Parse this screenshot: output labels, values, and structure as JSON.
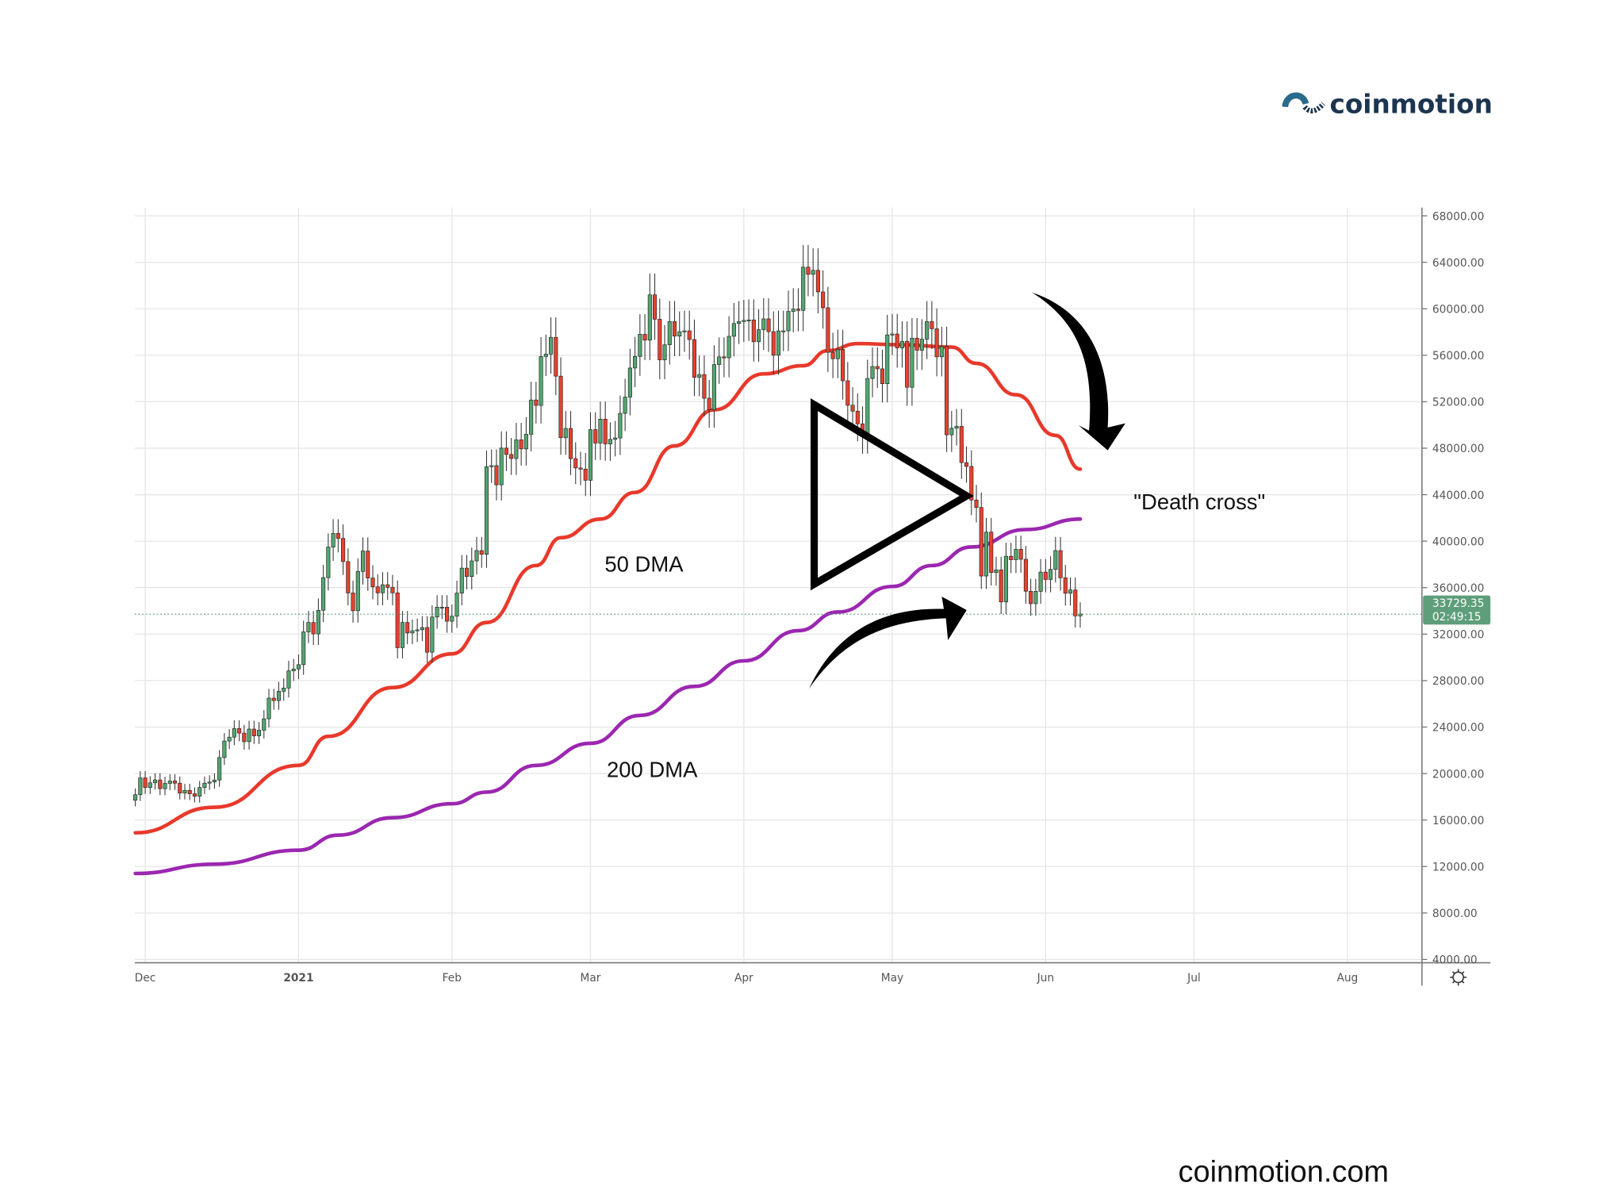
{
  "brand": {
    "logo_text": "coinmotion",
    "footer_url": "coinmotion.com",
    "logo_color": "#1c3550"
  },
  "chart_data": {
    "type": "candlestick",
    "title": "",
    "start_date": "2020-11-28",
    "closes": [
      17700,
      18180,
      19625,
      18800,
      19200,
      19450,
      18700,
      19150,
      19360,
      19170,
      18320,
      18550,
      18260,
      18050,
      18800,
      19170,
      19270,
      19440,
      21380,
      22800,
      23130,
      23870,
      23480,
      22740,
      23830,
      23240,
      23730,
      24710,
      26490,
      26280,
      27080,
      27360,
      28840,
      29000,
      29370,
      32190,
      33000,
      32020,
      34050,
      36860,
      39490,
      40670,
      40240,
      38240,
      35540,
      34010,
      37390,
      39150,
      36830,
      36070,
      35550,
      36250,
      36020,
      35550,
      30830,
      33000,
      32100,
      32290,
      32370,
      32570,
      30440,
      33470,
      34320,
      34320,
      33110,
      33540,
      35530,
      37680,
      36960,
      38300,
      39190,
      38870,
      46400,
      46500,
      44850,
      48010,
      47460,
      47110,
      48720,
      47940,
      49200,
      52150,
      51680,
      55890,
      56100,
      57540,
      54200,
      48900,
      49700,
      47100,
      46300,
      46200,
      45240,
      49600,
      48440,
      50500,
      48370,
      48760,
      48880,
      51000,
      52400,
      54900,
      55900,
      57800,
      57300,
      61200,
      59100,
      55600,
      56900,
      58900,
      57650,
      58030,
      58100,
      57350,
      54100,
      54340,
      52300,
      51300,
      55200,
      55860,
      55780,
      57630,
      58730,
      58900,
      59000,
      59040,
      57160,
      58200,
      59130,
      58030,
      56000,
      58100,
      58100,
      59770,
      59970,
      59860,
      63580,
      62960,
      63310,
      61450,
      60090,
      56250,
      55700,
      56500,
      53800,
      51700,
      51190,
      50100,
      49000,
      54000,
      55030,
      54830,
      53550,
      57750,
      57830,
      56630,
      57200,
      53240,
      57470,
      56430,
      57380,
      58900,
      58280,
      55860,
      56750,
      49150,
      49720,
      49880,
      46760,
      46430,
      43540,
      42900,
      37000,
      40780,
      37300,
      37530,
      34770,
      38700,
      38400,
      39300,
      38440,
      35690,
      34620,
      35680,
      37340,
      36700,
      37570,
      39190,
      36850,
      35520,
      35800,
      33570,
      33730
    ],
    "series": [
      {
        "name": "50 DMA",
        "color": "#e8392b",
        "points": [
          [
            "2020-11-29",
            14900
          ],
          [
            "2020-12-15",
            17100
          ],
          [
            "2021-01-01",
            20700
          ],
          [
            "2021-01-07",
            23200
          ],
          [
            "2021-01-20",
            27400
          ],
          [
            "2021-02-01",
            30300
          ],
          [
            "2021-02-08",
            33000
          ],
          [
            "2021-02-18",
            37900
          ],
          [
            "2021-02-23",
            40300
          ],
          [
            "2021-03-03",
            41900
          ],
          [
            "2021-03-10",
            44200
          ],
          [
            "2021-03-18",
            48200
          ],
          [
            "2021-03-26",
            51300
          ],
          [
            "2021-04-05",
            54400
          ],
          [
            "2021-04-13",
            55100
          ],
          [
            "2021-04-18",
            56400
          ],
          [
            "2021-04-24",
            57000
          ],
          [
            "2021-05-03",
            56900
          ],
          [
            "2021-05-13",
            56700
          ],
          [
            "2021-05-18",
            55300
          ],
          [
            "2021-05-26",
            52600
          ],
          [
            "2021-06-03",
            49100
          ],
          [
            "2021-06-08",
            46200
          ]
        ]
      },
      {
        "name": "200 DMA",
        "color": "#9b27b0",
        "points": [
          [
            "2020-11-29",
            11400
          ],
          [
            "2020-12-15",
            12200
          ],
          [
            "2021-01-01",
            13400
          ],
          [
            "2021-01-09",
            14700
          ],
          [
            "2021-01-20",
            16200
          ],
          [
            "2021-02-01",
            17400
          ],
          [
            "2021-02-08",
            18400
          ],
          [
            "2021-02-18",
            20700
          ],
          [
            "2021-03-01",
            22600
          ],
          [
            "2021-03-11",
            25000
          ],
          [
            "2021-03-22",
            27500
          ],
          [
            "2021-04-01",
            29700
          ],
          [
            "2021-04-12",
            32300
          ],
          [
            "2021-04-20",
            33900
          ],
          [
            "2021-05-01",
            36100
          ],
          [
            "2021-05-09",
            37900
          ],
          [
            "2021-05-17",
            39500
          ],
          [
            "2021-05-28",
            41000
          ],
          [
            "2021-06-08",
            41900
          ]
        ]
      }
    ],
    "x_ticks": [
      [
        "2020-12-01",
        "Dec"
      ],
      [
        "2021-01-01",
        "2021"
      ],
      [
        "2021-02-01",
        "Feb"
      ],
      [
        "2021-03-01",
        "Mar"
      ],
      [
        "2021-04-01",
        "Apr"
      ],
      [
        "2021-05-01",
        "May"
      ],
      [
        "2021-06-01",
        "Jun"
      ],
      [
        "2021-07-01",
        "Jul"
      ],
      [
        "2021-08-01",
        "Aug"
      ]
    ],
    "y_ticks": [
      "68000.00",
      "64000.00",
      "60000.00",
      "56000.00",
      "52000.00",
      "48000.00",
      "44000.00",
      "40000.00",
      "36000.00",
      "32000.00",
      "28000.00",
      "24000.00",
      "20000.00",
      "16000.00",
      "12000.00",
      "8000.00",
      "4000.00"
    ],
    "ylim": [
      4000,
      68000
    ],
    "last_price": {
      "value": "33729.35",
      "countdown": "02:49:15",
      "color": "#5e9e7b"
    },
    "annotations": {
      "fast_ma": "50 DMA",
      "slow_ma": "200 DMA",
      "event": "\"Death cross\""
    },
    "up_color": "#53a66f",
    "down_color": "#e8412e",
    "grid": true,
    "legend": "none"
  }
}
